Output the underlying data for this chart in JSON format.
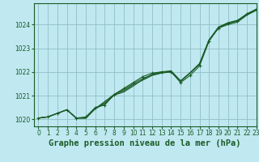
{
  "title": "Graphe pression niveau de la mer (hPa)",
  "background_color": "#c0e8f0",
  "grid_color": "#90c0c8",
  "line_color": "#1a5c28",
  "xlim": [
    -0.5,
    23
  ],
  "ylim": [
    1019.7,
    1024.9
  ],
  "yticks": [
    1020,
    1021,
    1022,
    1023,
    1024
  ],
  "xticks": [
    0,
    1,
    2,
    3,
    4,
    5,
    6,
    7,
    8,
    9,
    10,
    11,
    12,
    13,
    14,
    15,
    16,
    17,
    18,
    19,
    20,
    21,
    22,
    23
  ],
  "series1_y": [
    1020.05,
    1020.1,
    1020.25,
    1020.4,
    1020.05,
    1020.05,
    1020.45,
    1020.75,
    1021.05,
    1021.2,
    1021.45,
    1021.65,
    1021.85,
    1021.95,
    1022.0,
    1021.6,
    1021.95,
    1022.35,
    1023.35,
    1023.85,
    1024.0,
    1024.1,
    1024.4,
    1024.6
  ],
  "series2_y": [
    1020.05,
    1020.1,
    1020.25,
    1020.4,
    1020.05,
    1020.05,
    1020.45,
    1020.7,
    1021.05,
    1021.25,
    1021.5,
    1021.72,
    1021.88,
    1021.97,
    1022.02,
    1021.62,
    1021.95,
    1022.32,
    1023.32,
    1023.88,
    1024.05,
    1024.15,
    1024.42,
    1024.62
  ],
  "series3_y": [
    1020.05,
    1020.1,
    1020.25,
    1020.4,
    1020.05,
    1020.05,
    1020.45,
    1020.65,
    1021.02,
    1021.15,
    1021.4,
    1021.68,
    1021.9,
    1022.0,
    1022.05,
    1021.62,
    1021.97,
    1022.35,
    1023.35,
    1023.9,
    1024.08,
    1024.18,
    1024.45,
    1024.65
  ],
  "series_noisy_y": [
    1020.05,
    1020.1,
    1020.25,
    1020.4,
    1020.05,
    1020.1,
    1020.5,
    1020.6,
    1021.05,
    1021.3,
    1021.55,
    1021.8,
    1021.95,
    1022.0,
    1022.0,
    1021.55,
    1021.85,
    1022.25,
    1023.3,
    1023.85,
    1024.05,
    1024.15,
    1024.45,
    1024.65
  ],
  "title_color": "#1a5c28",
  "title_fontsize": 7.5,
  "tick_fontsize": 5.5
}
